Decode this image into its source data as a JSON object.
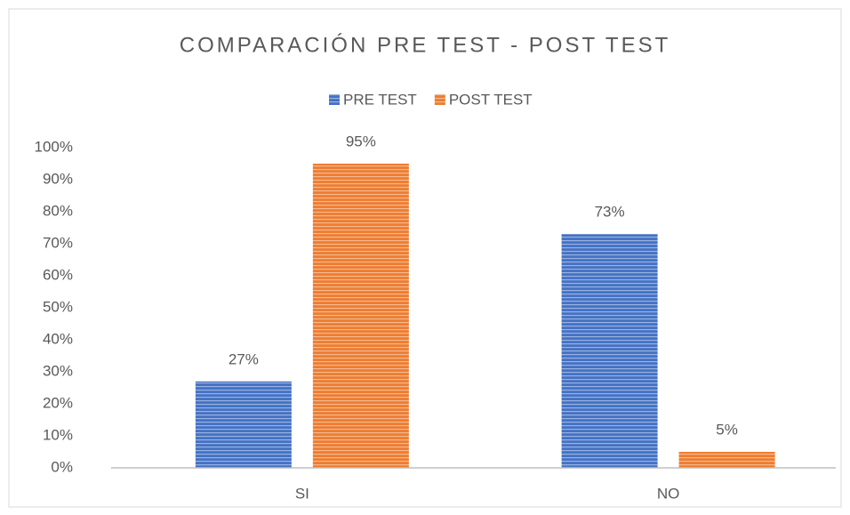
{
  "chart_data": {
    "type": "bar",
    "title": "COMPARACIÓN PRE TEST - POST TEST",
    "categories": [
      "SI",
      "NO"
    ],
    "series": [
      {
        "name": "PRE TEST",
        "color": "#4472c4",
        "values": [
          27,
          73
        ],
        "value_labels": [
          "27%",
          "73%"
        ]
      },
      {
        "name": "POST TEST",
        "color": "#ed7d31",
        "values": [
          95,
          5
        ],
        "value_labels": [
          "95%",
          "5%"
        ]
      }
    ],
    "ylim": [
      0,
      100
    ],
    "yticks": [
      {
        "value": 0,
        "label": "0%"
      },
      {
        "value": 10,
        "label": "10%"
      },
      {
        "value": 20,
        "label": "20%"
      },
      {
        "value": 30,
        "label": "30%"
      },
      {
        "value": 40,
        "label": "40%"
      },
      {
        "value": 50,
        "label": "50%"
      },
      {
        "value": 60,
        "label": "60%"
      },
      {
        "value": 70,
        "label": "70%"
      },
      {
        "value": 80,
        "label": "80%"
      },
      {
        "value": 90,
        "label": "90%"
      },
      {
        "value": 100,
        "label": "100%"
      }
    ],
    "grid": false,
    "legend": "top"
  }
}
